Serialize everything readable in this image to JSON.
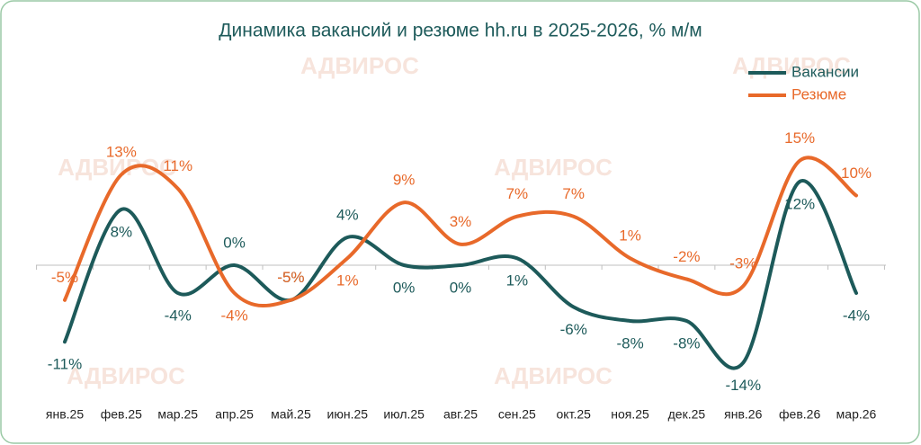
{
  "chart_data": {
    "type": "line",
    "title": "Динамика вакансий и резюме hh.ru в 2025-2026, % м/м",
    "watermark": "АДВИРОС",
    "categories": [
      "янв.25",
      "фев.25",
      "мар.25",
      "апр.25",
      "май.25",
      "июн.25",
      "июл.25",
      "авг.25",
      "сен.25",
      "окт.25",
      "ноя.25",
      "дек.25",
      "янв.26",
      "фев.26",
      "мар.26"
    ],
    "series": [
      {
        "name": "Вакансии",
        "color": "#1d5a5a",
        "values": [
          -11,
          8,
          -4,
          0,
          -5,
          4,
          0,
          0,
          1,
          -6,
          -8,
          -8,
          -14,
          12,
          -4
        ],
        "value_labels": [
          "-11%",
          "8%",
          "-4%",
          "0%",
          "-5%",
          "4%",
          "0%",
          "0%",
          "1%",
          "-6%",
          "-8%",
          "-8%",
          "-14%",
          "12%",
          "-4%"
        ]
      },
      {
        "name": "Резюме",
        "color": "#e8692a",
        "values": [
          -5,
          13,
          11,
          -4,
          -5,
          1,
          9,
          3,
          7,
          7,
          1,
          -2,
          -3,
          15,
          10
        ],
        "value_labels": [
          "-5%",
          "13%",
          "11%",
          "-4%",
          "-5%",
          "1%",
          "9%",
          "3%",
          "7%",
          "7%",
          "1%",
          "-2%",
          "-3%",
          "15%",
          "10%"
        ]
      }
    ],
    "legend": "top-right"
  }
}
